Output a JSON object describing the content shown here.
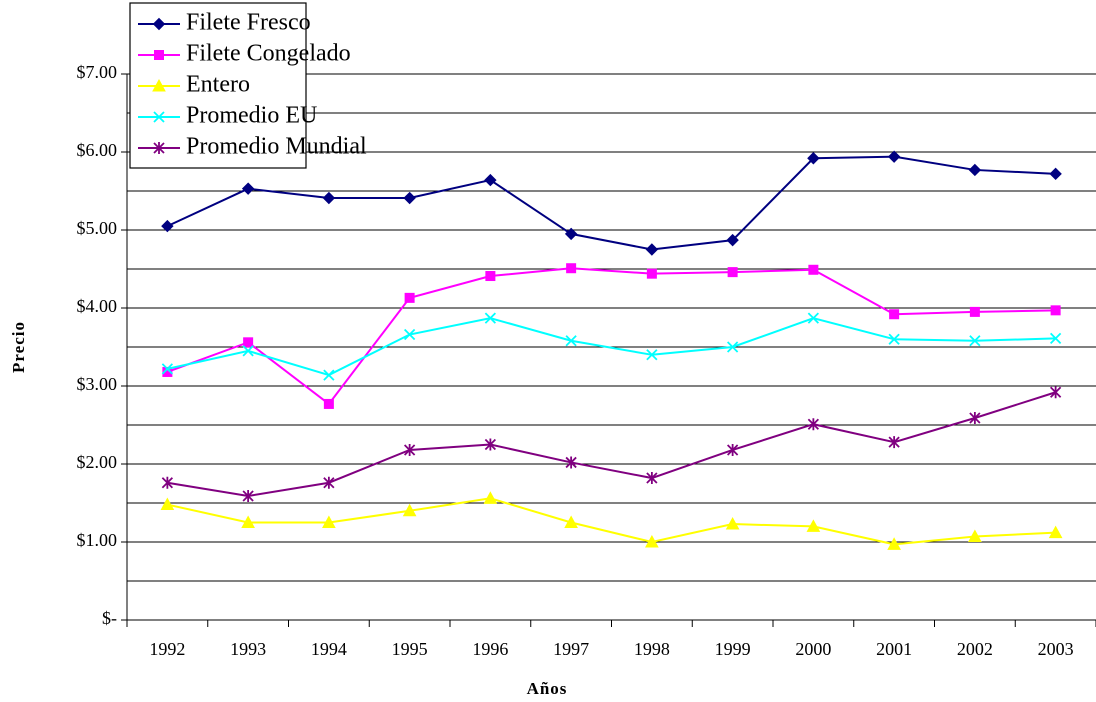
{
  "chart_data": {
    "type": "line",
    "x_label": "Años",
    "y_label": "Precio",
    "categories": [
      "1992",
      "1993",
      "1994",
      "1995",
      "1996",
      "1997",
      "1998",
      "1999",
      "2000",
      "2001",
      "2002",
      "2003"
    ],
    "series": [
      {
        "name": "Filete Fresco",
        "color": "#000080",
        "marker": "diamond",
        "values": [
          5.05,
          5.53,
          5.41,
          5.41,
          5.64,
          4.95,
          4.75,
          4.87,
          5.92,
          5.94,
          5.77,
          5.72
        ]
      },
      {
        "name": "Filete Congelado",
        "color": "#ff00ff",
        "marker": "square",
        "values": [
          3.18,
          3.56,
          2.77,
          4.13,
          4.41,
          4.51,
          4.44,
          4.46,
          4.49,
          3.92,
          3.95,
          3.97
        ]
      },
      {
        "name": "Entero",
        "color": "#ffff00",
        "marker": "triangle",
        "values": [
          1.48,
          1.25,
          1.25,
          1.4,
          1.56,
          1.25,
          1.0,
          1.23,
          1.2,
          0.97,
          1.07,
          1.12
        ]
      },
      {
        "name": "Promedio EU",
        "color": "#00ffff",
        "marker": "x",
        "values": [
          3.22,
          3.45,
          3.14,
          3.66,
          3.87,
          3.58,
          3.4,
          3.5,
          3.87,
          3.6,
          3.58,
          3.61
        ]
      },
      {
        "name": "Promedio Mundial",
        "color": "#800080",
        "marker": "star",
        "values": [
          1.76,
          1.59,
          1.76,
          2.18,
          2.25,
          2.02,
          1.82,
          2.18,
          2.51,
          2.28,
          2.59,
          2.92
        ]
      }
    ],
    "ylim": [
      0,
      7
    ],
    "yticks": [
      {
        "value": 0,
        "label": "$-"
      },
      {
        "value": 1,
        "label": "$1.00"
      },
      {
        "value": 2,
        "label": "$2.00"
      },
      {
        "value": 3,
        "label": "$3.00"
      },
      {
        "value": 4,
        "label": "$4.00"
      },
      {
        "value": 5,
        "label": "$5.00"
      },
      {
        "value": 6,
        "label": "$6.00"
      },
      {
        "value": 7,
        "label": "$7.00"
      }
    ],
    "minor_grid": [
      0.5,
      1.5,
      2.5,
      3.5,
      4.5,
      5.5,
      6.5
    ],
    "grid": true,
    "legend": "upper left"
  }
}
